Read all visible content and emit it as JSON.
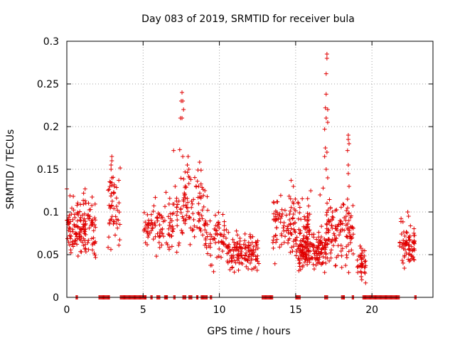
{
  "chart_data": {
    "type": "scatter",
    "title": "Day 083 of 2019, SRMTID for receiver bula",
    "xlabel": "GPS time / hours",
    "ylabel": "SRMTID / TECUs",
    "xlim": [
      0,
      24
    ],
    "ylim": [
      0,
      0.3
    ],
    "grid": true,
    "marker": "+",
    "series_color": "#e00000",
    "xticks": [
      {
        "value": 0,
        "label": "0"
      },
      {
        "value": 5,
        "label": "5"
      },
      {
        "value": 10,
        "label": "10"
      },
      {
        "value": 15,
        "label": "15"
      },
      {
        "value": 20,
        "label": "20"
      }
    ],
    "yticks": [
      {
        "value": 0,
        "label": "0"
      },
      {
        "value": 0.05,
        "label": "0.05"
      },
      {
        "value": 0.1,
        "label": "0.1"
      },
      {
        "value": 0.15,
        "label": "0.15"
      },
      {
        "value": 0.2,
        "label": "0.2"
      },
      {
        "value": 0.25,
        "label": "0.25"
      },
      {
        "value": 0.3,
        "label": "0.3"
      }
    ],
    "clusters": [
      {
        "x": [
          0.0,
          1.9
        ],
        "y": [
          0.03,
          0.13
        ],
        "n": 150
      },
      {
        "x": [
          2.7,
          3.5
        ],
        "y": [
          0.04,
          0.165
        ],
        "n": 50
      },
      {
        "x": [
          5.0,
          7.0
        ],
        "y": [
          0.04,
          0.12
        ],
        "n": 90
      },
      {
        "x": [
          7.0,
          9.0
        ],
        "y": [
          0.04,
          0.17
        ],
        "n": 100
      },
      {
        "x": [
          9.0,
          10.5
        ],
        "y": [
          0.02,
          0.12
        ],
        "n": 70
      },
      {
        "x": [
          10.5,
          12.6
        ],
        "y": [
          0.02,
          0.085
        ],
        "n": 130
      },
      {
        "x": [
          13.5,
          16.0
        ],
        "y": [
          0.03,
          0.135
        ],
        "n": 150
      },
      {
        "x": [
          15.2,
          17.0
        ],
        "y": [
          0.02,
          0.09
        ],
        "n": 150
      },
      {
        "x": [
          17.0,
          18.8
        ],
        "y": [
          0.02,
          0.13
        ],
        "n": 120
      },
      {
        "x": [
          19.0,
          19.6
        ],
        "y": [
          0.005,
          0.07
        ],
        "n": 40
      },
      {
        "x": [
          21.8,
          22.8
        ],
        "y": [
          0.02,
          0.1
        ],
        "n": 70
      }
    ],
    "peaks": [
      {
        "x": 2.95,
        "y": 0.165
      },
      {
        "x": 2.95,
        "y": 0.16
      },
      {
        "x": 2.9,
        "y": 0.155
      },
      {
        "x": 2.9,
        "y": 0.15
      },
      {
        "x": 2.95,
        "y": 0.14
      },
      {
        "x": 7.55,
        "y": 0.24
      },
      {
        "x": 7.5,
        "y": 0.23
      },
      {
        "x": 7.6,
        "y": 0.23
      },
      {
        "x": 7.65,
        "y": 0.22
      },
      {
        "x": 7.55,
        "y": 0.21
      },
      {
        "x": 7.45,
        "y": 0.21
      },
      {
        "x": 7.0,
        "y": 0.172
      },
      {
        "x": 7.4,
        "y": 0.173
      },
      {
        "x": 7.6,
        "y": 0.165
      },
      {
        "x": 7.95,
        "y": 0.165
      },
      {
        "x": 7.9,
        "y": 0.155
      },
      {
        "x": 8.0,
        "y": 0.15
      },
      {
        "x": 7.1,
        "y": 0.13
      },
      {
        "x": 8.05,
        "y": 0.14
      },
      {
        "x": 14.7,
        "y": 0.137
      },
      {
        "x": 14.85,
        "y": 0.13
      },
      {
        "x": 17.05,
        "y": 0.285
      },
      {
        "x": 17.05,
        "y": 0.28
      },
      {
        "x": 17.0,
        "y": 0.262
      },
      {
        "x": 17.0,
        "y": 0.238
      },
      {
        "x": 16.95,
        "y": 0.222
      },
      {
        "x": 17.1,
        "y": 0.22
      },
      {
        "x": 17.0,
        "y": 0.21
      },
      {
        "x": 17.1,
        "y": 0.205
      },
      {
        "x": 16.9,
        "y": 0.197
      },
      {
        "x": 16.95,
        "y": 0.175
      },
      {
        "x": 17.05,
        "y": 0.17
      },
      {
        "x": 16.9,
        "y": 0.165
      },
      {
        "x": 17.0,
        "y": 0.15
      },
      {
        "x": 17.1,
        "y": 0.14
      },
      {
        "x": 16.8,
        "y": 0.128
      },
      {
        "x": 16.6,
        "y": 0.12
      },
      {
        "x": 18.45,
        "y": 0.19
      },
      {
        "x": 18.45,
        "y": 0.185
      },
      {
        "x": 18.5,
        "y": 0.18
      },
      {
        "x": 18.4,
        "y": 0.172
      },
      {
        "x": 18.45,
        "y": 0.155
      },
      {
        "x": 18.45,
        "y": 0.145
      },
      {
        "x": 18.5,
        "y": 0.13
      },
      {
        "x": 18.4,
        "y": 0.115
      },
      {
        "x": 5.8,
        "y": 0.117
      },
      {
        "x": 6.5,
        "y": 0.123
      },
      {
        "x": 1.2,
        "y": 0.127
      },
      {
        "x": 1.1,
        "y": 0.122
      },
      {
        "x": 0.0,
        "y": 0.127
      },
      {
        "x": 22.35,
        "y": 0.1
      },
      {
        "x": 22.4,
        "y": 0.095
      },
      {
        "x": 9.05,
        "y": 0.125
      },
      {
        "x": 9.2,
        "y": 0.118
      }
    ],
    "zero_intervals": [
      [
        0.6,
        0.7
      ],
      [
        2.1,
        2.8
      ],
      [
        3.5,
        5.2
      ],
      [
        5.5,
        5.6
      ],
      [
        5.9,
        6.1
      ],
      [
        6.4,
        6.6
      ],
      [
        7.0,
        7.1
      ],
      [
        7.6,
        7.8
      ],
      [
        8.0,
        8.2
      ],
      [
        8.5,
        8.6
      ],
      [
        8.8,
        9.2
      ],
      [
        9.4,
        9.5
      ],
      [
        12.8,
        13.5
      ],
      [
        15.0,
        15.3
      ],
      [
        16.9,
        17.1
      ],
      [
        18.0,
        18.2
      ],
      [
        18.7,
        18.8
      ],
      [
        19.4,
        21.8
      ],
      [
        22.8,
        22.9
      ]
    ],
    "seed": 83
  }
}
